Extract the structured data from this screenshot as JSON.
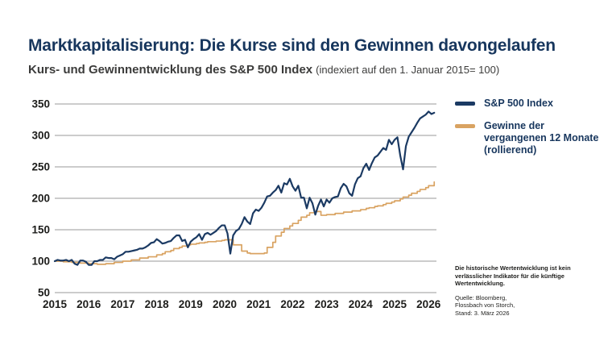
{
  "header": {
    "title": "Marktkapitalisierung: Die Kurse sind den Gewinnen davongelaufen",
    "subtitle_main": "Kurs- und Gewinnentwicklung des S&P 500 Index",
    "subtitle_note": "(indexiert auf den 1. Januar 2015= 100)"
  },
  "legend": {
    "items": [
      {
        "label": "S&P 500 Index",
        "swatch_color": "#1b3a63"
      },
      {
        "lines": [
          "Gewinne der",
          "vergangenen 12 Monate",
          "(rollierend)"
        ],
        "swatch_color": "#d9a362"
      }
    ]
  },
  "footnotes": {
    "disclaimer": "Die historische Wertentwicklung ist kein verlässlicher Indikator für die künftige Wertentwicklung.",
    "source_lines": [
      "Quelle: Bloomberg,",
      "Flossbach von Storch,",
      "Stand: 3. März 2026"
    ]
  },
  "colors": {
    "title_navy": "#17365d",
    "sp500_line": "#1b3a63",
    "earnings_line": "#d9a362",
    "gridline": "#9a9a9a",
    "axis_text": "#1d1d1b",
    "subtitle_gray": "#3c3c3b"
  },
  "chart_data": {
    "type": "line",
    "title": "Kurs- und Gewinnentwicklung des S&P 500 Index (indexiert auf den 1. Januar 2015 = 100)",
    "x_unit": "monthly from January 2015 to March 2026",
    "x_ticks": [
      2015,
      2016,
      2017,
      2018,
      2019,
      2020,
      2021,
      2022,
      2023,
      2024,
      2025,
      2026
    ],
    "y_ticks": [
      50,
      100,
      150,
      200,
      250,
      300,
      350
    ],
    "ylim": [
      50,
      350
    ],
    "grid": "horizontal",
    "legend_position": "right",
    "series": [
      {
        "name": "S&P 500 Index",
        "color": "#1b3a63",
        "step": false,
        "values": [
          100,
          102,
          101,
          101,
          102,
          100,
          102,
          96,
          94,
          101,
          101,
          99,
          94,
          94,
          100,
          100,
          102,
          102,
          106,
          105,
          105,
          103,
          107,
          109,
          111,
          115,
          115,
          116,
          117,
          118,
          120,
          120,
          122,
          125,
          129,
          130,
          135,
          132,
          128,
          129,
          131,
          132,
          137,
          141,
          141,
          132,
          134,
          122,
          131,
          135,
          138,
          143,
          134,
          143,
          145,
          142,
          145,
          148,
          153,
          157,
          157,
          144,
          112,
          141,
          148,
          151,
          159,
          170,
          163,
          159,
          176,
          182,
          180,
          185,
          193,
          203,
          204,
          209,
          213,
          220,
          209,
          224,
          222,
          231,
          219,
          212,
          220,
          201,
          201,
          184,
          201,
          192,
          174,
          188,
          198,
          187,
          198,
          193,
          200,
          202,
          203,
          216,
          223,
          219,
          208,
          204,
          222,
          232,
          235,
          248,
          255,
          245,
          256,
          265,
          268,
          274,
          280,
          277,
          293,
          286,
          293,
          297,
          268,
          246,
          283,
          298,
          305,
          312,
          320,
          327,
          330,
          333,
          338,
          334,
          336
        ]
      },
      {
        "name": "Gewinne der vergangenen 12 Monate (rollierend)",
        "color": "#d9a362",
        "step": true,
        "values": [
          100,
          100,
          100,
          99,
          99,
          99,
          98,
          98,
          98,
          97,
          97,
          97,
          96,
          96,
          96,
          95,
          95,
          95,
          96,
          96,
          96,
          98,
          98,
          98,
          100,
          100,
          100,
          102,
          102,
          102,
          105,
          105,
          105,
          107,
          107,
          107,
          110,
          110,
          112,
          115,
          115,
          117,
          120,
          120,
          122,
          124,
          124,
          126,
          127,
          127,
          128,
          129,
          129,
          130,
          131,
          131,
          131,
          132,
          132,
          133,
          134,
          134,
          134,
          126,
          126,
          126,
          116,
          116,
          113,
          112,
          112,
          112,
          112,
          112,
          113,
          122,
          122,
          130,
          140,
          140,
          146,
          152,
          152,
          156,
          160,
          160,
          165,
          170,
          170,
          173,
          177,
          177,
          179,
          179,
          173,
          173,
          174,
          174,
          174,
          176,
          176,
          176,
          178,
          178,
          178,
          180,
          180,
          180,
          182,
          182,
          184,
          185,
          185,
          187,
          188,
          188,
          190,
          192,
          192,
          194,
          196,
          196,
          199,
          202,
          202,
          205,
          208,
          208,
          211,
          214,
          214,
          217,
          220,
          220,
          226
        ]
      }
    ]
  }
}
